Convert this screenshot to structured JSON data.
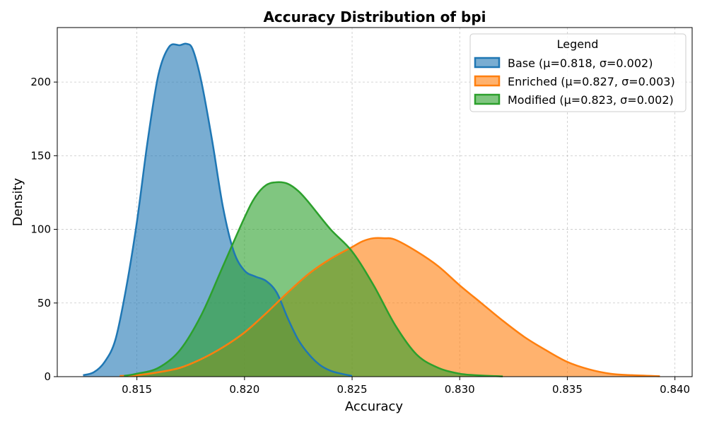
{
  "chart_data": {
    "type": "area",
    "title": "Accuracy Distribution of bpi",
    "xlabel": "Accuracy",
    "ylabel": "Density",
    "xlim": [
      0.8113,
      0.8408
    ],
    "ylim": [
      0,
      237
    ],
    "xticks": [
      0.815,
      0.82,
      0.825,
      0.83,
      0.835,
      0.84
    ],
    "xtick_labels": [
      "0.815",
      "0.820",
      "0.825",
      "0.830",
      "0.835",
      "0.840"
    ],
    "yticks": [
      0,
      50,
      100,
      150,
      200
    ],
    "ytick_labels": [
      "0",
      "50",
      "100",
      "150",
      "200"
    ],
    "grid": true,
    "legend": {
      "title": "Legend",
      "placement": "top-right"
    },
    "series": [
      {
        "name": "Base (μ=0.818, σ=0.002)",
        "color": "#1f77b4",
        "x": [
          0.8125,
          0.813,
          0.8135,
          0.814,
          0.8145,
          0.815,
          0.8155,
          0.816,
          0.8165,
          0.817,
          0.8173,
          0.8176,
          0.818,
          0.8185,
          0.819,
          0.8195,
          0.82,
          0.8205,
          0.821,
          0.8215,
          0.822,
          0.8225,
          0.823,
          0.8235,
          0.824,
          0.8245,
          0.825
        ],
        "y": [
          1,
          3,
          10,
          25,
          60,
          105,
          160,
          205,
          224,
          225,
          226,
          222,
          200,
          160,
          115,
          85,
          72,
          68,
          65,
          57,
          40,
          25,
          15,
          8,
          4,
          2,
          0.5
        ]
      },
      {
        "name": "Enriched (μ=0.827, σ=0.003)",
        "color": "#ff7f0e",
        "x": [
          0.8142,
          0.815,
          0.816,
          0.817,
          0.818,
          0.819,
          0.82,
          0.821,
          0.822,
          0.823,
          0.824,
          0.825,
          0.8255,
          0.826,
          0.8265,
          0.827,
          0.828,
          0.829,
          0.83,
          0.831,
          0.832,
          0.833,
          0.834,
          0.835,
          0.836,
          0.837,
          0.838,
          0.8393
        ],
        "y": [
          0.5,
          1,
          3,
          6,
          12,
          20,
          30,
          43,
          57,
          70,
          80,
          88,
          92,
          94,
          94,
          93,
          85,
          75,
          62,
          50,
          38,
          27,
          18,
          10,
          5,
          2,
          1,
          0.3
        ]
      },
      {
        "name": "Modified (μ=0.823, σ=0.002)",
        "color": "#2ca02c",
        "x": [
          0.8144,
          0.815,
          0.816,
          0.817,
          0.818,
          0.819,
          0.82,
          0.8205,
          0.821,
          0.8215,
          0.822,
          0.8225,
          0.823,
          0.824,
          0.825,
          0.826,
          0.827,
          0.828,
          0.829,
          0.83,
          0.831,
          0.832
        ],
        "y": [
          0.5,
          2,
          6,
          18,
          42,
          75,
          108,
          122,
          130,
          132,
          131,
          126,
          118,
          100,
          85,
          62,
          35,
          15,
          6,
          2,
          0.8,
          0.2
        ]
      }
    ]
  }
}
